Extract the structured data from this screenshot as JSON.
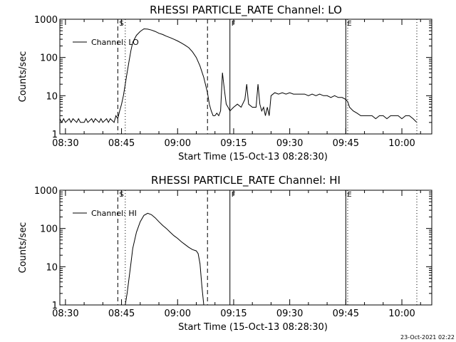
{
  "footer_timestamp": "23-Oct-2021 02:22",
  "chart_data": [
    {
      "type": "line",
      "title": "RHESSI PARTICLE_RATE Channel: LO",
      "xlabel": "Start Time (15-Oct-13 08:28:30)",
      "ylabel": "Counts/sec",
      "y_scale": "log",
      "xlim": [
        "08:28:30",
        "10:08:00"
      ],
      "ylim": [
        1,
        1000
      ],
      "x_ticks": [
        "08:30",
        "08:45",
        "09:00",
        "09:15",
        "09:30",
        "09:45",
        "10:00"
      ],
      "y_ticks": [
        "1",
        "10",
        "100",
        "1000"
      ],
      "legend": {
        "label": "Channel: LO",
        "placement": "top-left"
      },
      "markers": [
        {
          "label": "S",
          "time": "08:44",
          "style": "dashed"
        },
        {
          "label": "",
          "time": "08:46",
          "style": "dotted"
        },
        {
          "label": "",
          "time": "09:08",
          "style": "dashed"
        },
        {
          "label": "F",
          "time": "09:14",
          "style": "solid"
        },
        {
          "label": "E",
          "time": "09:45",
          "style": "solid"
        },
        {
          "label": "",
          "time": "09:45:30",
          "style": "dotted"
        },
        {
          "label": "",
          "time": "10:04",
          "style": "dotted"
        }
      ],
      "series": [
        {
          "x": [
            "08:28:30",
            "08:29",
            "08:29:30",
            "08:30",
            "08:31",
            "08:31:30",
            "08:32",
            "08:33",
            "08:33:30",
            "08:34",
            "08:35",
            "08:35:30",
            "08:36",
            "08:37",
            "08:37:30",
            "08:38",
            "08:39",
            "08:39:30",
            "08:40",
            "08:41",
            "08:41:30",
            "08:42",
            "08:43",
            "08:43:30",
            "08:44",
            "08:44:30",
            "08:45",
            "08:45:30",
            "08:46",
            "08:46:30",
            "08:47",
            "08:47:30",
            "08:48",
            "08:49",
            "08:50",
            "08:51",
            "08:52",
            "08:53",
            "08:54",
            "08:55",
            "08:56",
            "08:57",
            "08:58",
            "08:59",
            "09:00",
            "09:01",
            "09:02",
            "09:03",
            "09:04",
            "09:05",
            "09:06",
            "09:07",
            "09:08",
            "09:08:30",
            "09:09",
            "09:09:30",
            "09:10",
            "09:10:30",
            "09:11",
            "09:11:30",
            "09:12",
            "09:12:30",
            "09:13",
            "09:13:30",
            "09:14",
            "09:15",
            "09:16",
            "09:17",
            "09:18",
            "09:18:30",
            "09:19",
            "09:20",
            "09:21",
            "09:21:30",
            "09:22",
            "09:22:30",
            "09:23",
            "09:23:30",
            "09:24",
            "09:24:30",
            "09:25",
            "09:26",
            "09:27",
            "09:28",
            "09:29",
            "09:30",
            "09:31",
            "09:32",
            "09:33",
            "09:34",
            "09:35",
            "09:36",
            "09:37",
            "09:38",
            "09:39",
            "09:40",
            "09:41",
            "09:42",
            "09:43",
            "09:44",
            "09:45",
            "09:45:30",
            "09:46",
            "09:47",
            "09:48",
            "09:49",
            "09:50",
            "09:51",
            "09:52",
            "09:53",
            "09:54",
            "09:55",
            "09:56",
            "09:57",
            "09:58",
            "09:59",
            "10:00",
            "10:01",
            "10:02",
            "10:03",
            "10:04"
          ],
          "y": [
            2.5,
            2,
            2.5,
            2,
            2.5,
            2,
            2.5,
            2,
            2.5,
            2,
            2,
            2.5,
            2,
            2.5,
            2,
            2.5,
            2,
            2.5,
            2,
            2.5,
            2,
            2.5,
            2,
            3,
            2.5,
            4,
            6,
            10,
            20,
            40,
            80,
            150,
            250,
            380,
            480,
            560,
            550,
            520,
            480,
            430,
            400,
            360,
            330,
            300,
            270,
            240,
            210,
            180,
            140,
            100,
            60,
            30,
            12,
            6,
            4,
            3,
            3,
            3.5,
            3,
            4,
            40,
            15,
            6,
            5,
            4,
            5,
            6,
            5,
            8,
            20,
            6,
            5,
            5,
            20,
            6,
            4,
            5,
            3,
            5,
            3,
            10,
            12,
            11,
            12,
            11,
            12,
            11,
            11,
            11,
            11,
            10,
            11,
            10,
            11,
            10,
            10,
            9,
            10,
            9,
            9,
            8,
            7,
            5,
            4,
            3.5,
            3,
            3,
            3,
            3,
            2.5,
            3,
            3,
            2.5,
            3,
            3,
            3,
            2.5,
            3,
            3,
            2.5,
            2
          ]
        }
      ]
    },
    {
      "type": "line",
      "title": "RHESSI PARTICLE_RATE Channel: HI",
      "xlabel": "Start Time (15-Oct-13 08:28:30)",
      "ylabel": "Counts/sec",
      "y_scale": "log",
      "xlim": [
        "08:28:30",
        "10:08:00"
      ],
      "ylim": [
        1,
        1000
      ],
      "x_ticks": [
        "08:30",
        "08:45",
        "09:00",
        "09:15",
        "09:30",
        "09:45",
        "10:00"
      ],
      "y_ticks": [
        "1",
        "10",
        "100",
        "1000"
      ],
      "legend": {
        "label": "Channel: HI",
        "placement": "top-left"
      },
      "markers": [
        {
          "label": "S",
          "time": "08:44",
          "style": "dashed"
        },
        {
          "label": "",
          "time": "08:46",
          "style": "dotted"
        },
        {
          "label": "",
          "time": "09:08",
          "style": "dashed"
        },
        {
          "label": "F",
          "time": "09:14",
          "style": "solid"
        },
        {
          "label": "E",
          "time": "09:45",
          "style": "solid"
        },
        {
          "label": "",
          "time": "09:45:30",
          "style": "dotted"
        },
        {
          "label": "",
          "time": "10:04",
          "style": "dotted"
        }
      ],
      "series": [
        {
          "x": [
            "08:46",
            "08:46:30",
            "08:47",
            "08:47:30",
            "08:48",
            "08:49",
            "08:50",
            "08:51",
            "08:52",
            "08:53",
            "08:54",
            "08:55",
            "08:56",
            "08:57",
            "08:58",
            "08:59",
            "09:00",
            "09:01",
            "09:02",
            "09:03",
            "09:04",
            "09:05",
            "09:05:30",
            "09:06",
            "09:06:30",
            "09:07"
          ],
          "y": [
            1,
            2,
            5,
            12,
            30,
            80,
            150,
            220,
            250,
            230,
            190,
            150,
            120,
            100,
            80,
            65,
            55,
            45,
            38,
            32,
            28,
            26,
            22,
            12,
            3,
            1
          ]
        }
      ]
    }
  ]
}
